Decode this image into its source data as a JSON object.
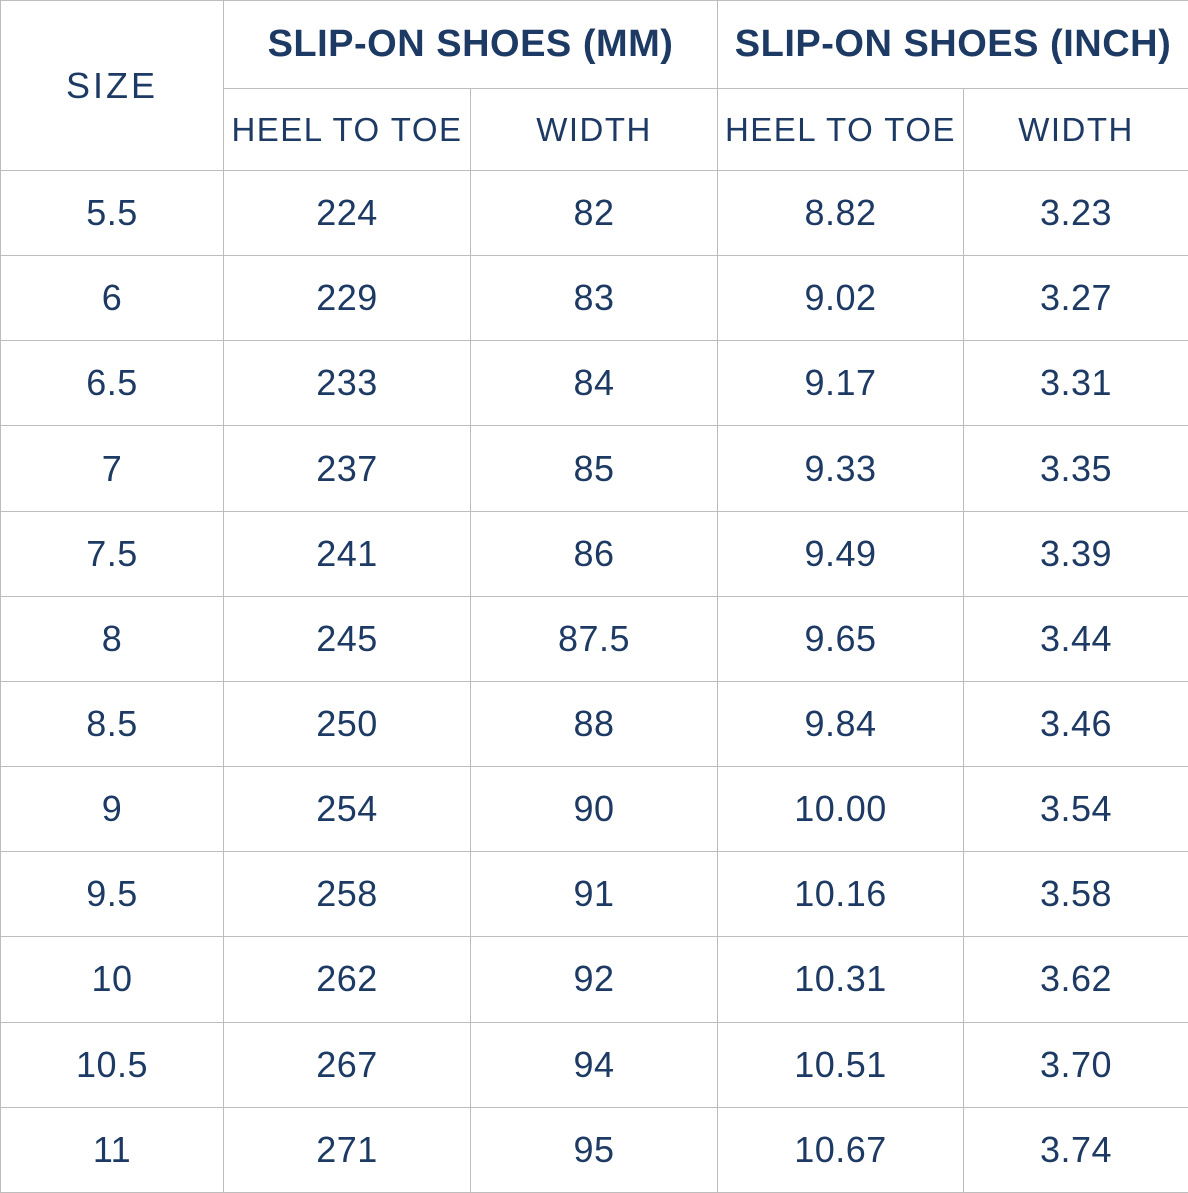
{
  "colors": {
    "text": "#1d3a64",
    "border": "#bdbdbd",
    "background": "#ffffff"
  },
  "chart_data": {
    "type": "table",
    "corner_label": "SIZE",
    "column_groups": [
      {
        "label": "SLIP-ON SHOES (MM)",
        "columns": [
          "HEEL TO TOE",
          "WIDTH"
        ]
      },
      {
        "label": "SLIP-ON SHOES (INCH)",
        "columns": [
          "HEEL TO TOE",
          "WIDTH"
        ]
      }
    ],
    "rows": [
      [
        "5.5",
        "224",
        "82",
        "8.82",
        "3.23"
      ],
      [
        "6",
        "229",
        "83",
        "9.02",
        "3.27"
      ],
      [
        "6.5",
        "233",
        "84",
        "9.17",
        "3.31"
      ],
      [
        "7",
        "237",
        "85",
        "9.33",
        "3.35"
      ],
      [
        "7.5",
        "241",
        "86",
        "9.49",
        "3.39"
      ],
      [
        "8",
        "245",
        "87.5",
        "9.65",
        "3.44"
      ],
      [
        "8.5",
        "250",
        "88",
        "9.84",
        "3.46"
      ],
      [
        "9",
        "254",
        "90",
        "10.00",
        "3.54"
      ],
      [
        "9.5",
        "258",
        "91",
        "10.16",
        "3.58"
      ],
      [
        "10",
        "262",
        "92",
        "10.31",
        "3.62"
      ],
      [
        "10.5",
        "267",
        "94",
        "10.51",
        "3.70"
      ],
      [
        "11",
        "271",
        "95",
        "10.67",
        "3.74"
      ]
    ]
  }
}
